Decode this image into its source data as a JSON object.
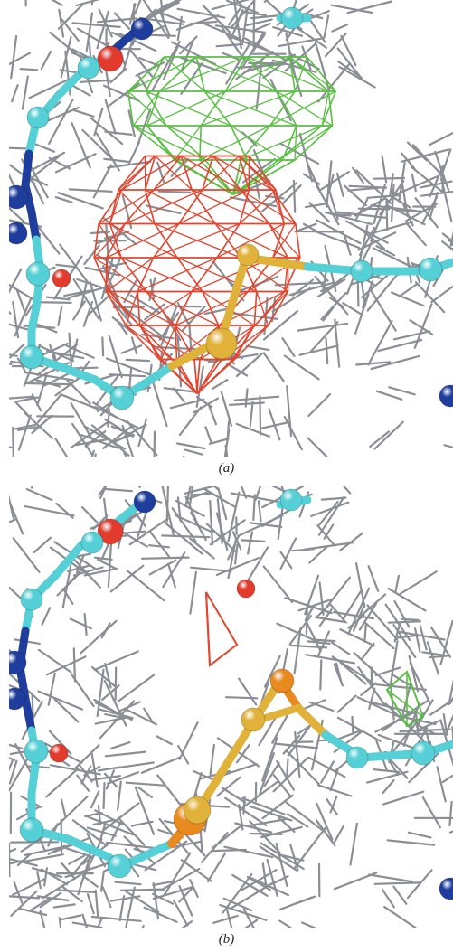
{
  "figure": {
    "panel_a": {
      "label": "(a)"
    },
    "panel_b": {
      "label": "(b)"
    }
  },
  "colors": {
    "mesh": "#8b8f95",
    "carbon": "#55d0d6",
    "nitrogen": "#1f3d9c",
    "oxygen": "#e23b2e",
    "sulfur": "#e0b23a",
    "alt_sulfur": "#e88a1f",
    "positive_density": "#5bbf45",
    "negative_density": "#e3452f"
  },
  "icons": [
    "electron-density-mesh-icon",
    "atom-sphere-icon",
    "bond-stick-icon"
  ]
}
